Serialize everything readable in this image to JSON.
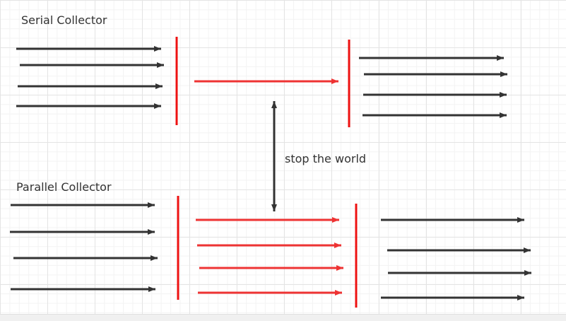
{
  "labels": {
    "serial": "Serial Collector",
    "parallel": "Parallel Collector",
    "stop": "stop the world"
  },
  "colors": {
    "app_thread": "#333333",
    "gc_thread": "#ee3333",
    "barrier": "#ee1111"
  }
}
